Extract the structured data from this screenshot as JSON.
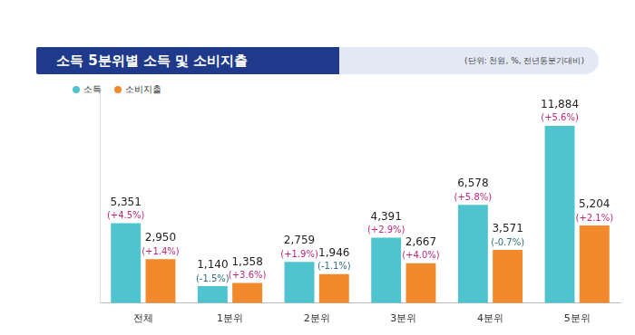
{
  "chart_data": {
    "type": "bar",
    "title": "소득 5분위별 소득 및 소비지출",
    "subtitle": "(단위: 천원, %, 전년동분기대비)",
    "categories": [
      "전체",
      "1분위",
      "2분위",
      "3분위",
      "4분위",
      "5분위"
    ],
    "series": [
      {
        "name": "소득",
        "color": "#4fc4cf",
        "values": [
          5351,
          1140,
          2759,
          4391,
          6578,
          11884
        ],
        "value_labels": [
          "5,351",
          "1,140",
          "2,759",
          "4,391",
          "6,578",
          "11,884"
        ],
        "changes": [
          4.5,
          -1.5,
          1.9,
          2.9,
          5.8,
          5.6
        ],
        "change_labels": [
          "(+4.5%)",
          "(-1.5%)",
          "(+1.9%)",
          "(+2.9%)",
          "(+5.8%)",
          "(+5.6%)"
        ]
      },
      {
        "name": "소비지출",
        "color": "#f08a2c",
        "values": [
          2950,
          1358,
          1946,
          2667,
          3571,
          5204
        ],
        "value_labels": [
          "2,950",
          "1,358",
          "1,946",
          "2,667",
          "3,571",
          "5,204"
        ],
        "changes": [
          1.4,
          3.6,
          -1.1,
          4.0,
          -0.7,
          2.1
        ],
        "change_labels": [
          "(+1.4%)",
          "(+3.6%)",
          "(-1.1%)",
          "(+4.0%)",
          "(-0.7%)",
          "(+2.1%)"
        ]
      }
    ],
    "ylim": [
      0,
      14000
    ],
    "grid": false,
    "legend": "upper left",
    "data_labels": true,
    "tick_labels": "x"
  }
}
